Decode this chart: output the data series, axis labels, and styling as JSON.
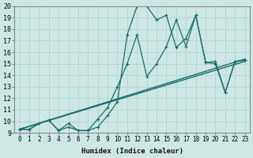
{
  "xlabel": "Humidex (Indice chaleur)",
  "ylabel": "",
  "xlim": [
    -0.5,
    23.5
  ],
  "ylim": [
    9,
    20
  ],
  "xticks": [
    0,
    1,
    2,
    3,
    4,
    5,
    6,
    7,
    8,
    9,
    10,
    11,
    12,
    13,
    14,
    15,
    16,
    17,
    18,
    19,
    20,
    21,
    22,
    23
  ],
  "yticks": [
    9,
    10,
    11,
    12,
    13,
    14,
    15,
    16,
    17,
    18,
    19,
    20
  ],
  "background_color": "#cde8e4",
  "grid_color": "#b8d8d4",
  "line_color": "#1a6b6b",
  "series": [
    {
      "x": [
        0,
        23
      ],
      "y": [
        9.3,
        15.2
      ],
      "marker": "None",
      "linestyle": "-",
      "linewidth": 1.0
    },
    {
      "x": [
        0,
        23
      ],
      "y": [
        9.3,
        15.4
      ],
      "marker": "None",
      "linestyle": "-",
      "linewidth": 1.0
    },
    {
      "x": [
        0,
        1,
        2,
        3,
        4,
        5,
        6,
        7,
        8,
        9,
        10,
        11,
        12,
        13,
        14,
        15,
        16,
        17,
        18,
        19,
        20,
        21,
        22,
        23
      ],
      "y": [
        9.3,
        9.3,
        9.8,
        10.1,
        9.2,
        9.5,
        9.2,
        9.2,
        9.5,
        10.5,
        11.7,
        17.5,
        20.0,
        20.0,
        18.8,
        19.2,
        16.4,
        17.2,
        19.2,
        15.1,
        15.2,
        12.5,
        15.2,
        15.3
      ],
      "marker": "+",
      "linestyle": "-",
      "linewidth": 0.9
    },
    {
      "x": [
        0,
        1,
        2,
        3,
        4,
        5,
        6,
        7,
        8,
        9,
        10,
        11,
        12,
        13,
        14,
        15,
        16,
        17,
        18,
        19,
        20,
        21,
        22,
        23
      ],
      "y": [
        9.3,
        9.3,
        9.8,
        10.1,
        9.2,
        9.8,
        9.2,
        9.2,
        10.2,
        11.2,
        13.0,
        15.0,
        17.5,
        13.9,
        15.0,
        16.5,
        18.8,
        16.5,
        19.2,
        15.1,
        15.0,
        12.5,
        15.2,
        15.3
      ],
      "marker": "+",
      "linestyle": "-",
      "linewidth": 0.9
    }
  ]
}
